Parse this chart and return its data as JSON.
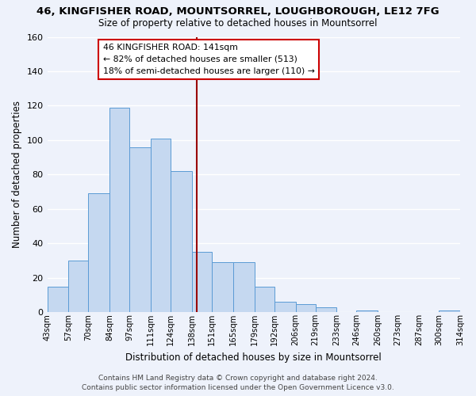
{
  "title_line1": "46, KINGFISHER ROAD, MOUNTSORREL, LOUGHBOROUGH, LE12 7FG",
  "title_line2": "Size of property relative to detached houses in Mountsorrel",
  "xlabel": "Distribution of detached houses by size in Mountsorrel",
  "ylabel": "Number of detached properties",
  "bar_left_edges": [
    43,
    57,
    70,
    84,
    97,
    111,
    124,
    138,
    151,
    165,
    179,
    192,
    206,
    219,
    233,
    246,
    260,
    273,
    287,
    300
  ],
  "bar_heights": [
    15,
    30,
    69,
    119,
    96,
    101,
    82,
    35,
    29,
    29,
    15,
    6,
    5,
    3,
    0,
    1,
    0,
    0,
    0,
    1
  ],
  "bin_edges": [
    43,
    57,
    70,
    84,
    97,
    111,
    124,
    138,
    151,
    165,
    179,
    192,
    206,
    219,
    233,
    246,
    260,
    273,
    287,
    300,
    314
  ],
  "tick_labels": [
    "43sqm",
    "57sqm",
    "70sqm",
    "84sqm",
    "97sqm",
    "111sqm",
    "124sqm",
    "138sqm",
    "151sqm",
    "165sqm",
    "179sqm",
    "192sqm",
    "206sqm",
    "219sqm",
    "233sqm",
    "246sqm",
    "260sqm",
    "273sqm",
    "287sqm",
    "300sqm",
    "314sqm"
  ],
  "bar_color": "#c5d8f0",
  "bar_edge_color": "#5b9bd5",
  "vline_x": 141,
  "vline_color": "#990000",
  "ylim": [
    0,
    160
  ],
  "xlim": [
    43,
    314
  ],
  "annotation_title": "46 KINGFISHER ROAD: 141sqm",
  "annotation_line2": "← 82% of detached houses are smaller (513)",
  "annotation_line3": "18% of semi-detached houses are larger (110) →",
  "footer_line1": "Contains HM Land Registry data © Crown copyright and database right 2024.",
  "footer_line2": "Contains public sector information licensed under the Open Government Licence v3.0.",
  "bg_color": "#eef2fb",
  "grid_color": "#ffffff",
  "yticks": [
    0,
    20,
    40,
    60,
    80,
    100,
    120,
    140,
    160
  ]
}
